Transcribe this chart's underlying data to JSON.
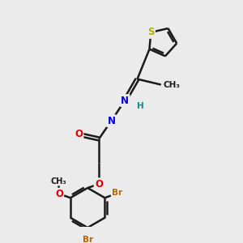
{
  "bg_color": "#ebebeb",
  "bond_color": "#1a1a1a",
  "bond_width": 1.8,
  "atom_colors": {
    "S": "#b8b000",
    "N": "#0000ee",
    "O": "#dd0000",
    "Br": "#bb6600",
    "H": "#009090",
    "C": "#1a1a1a"
  },
  "font_size_atom": 8.5,
  "font_size_small": 7.0,
  "font_size_methyl": 7.5
}
